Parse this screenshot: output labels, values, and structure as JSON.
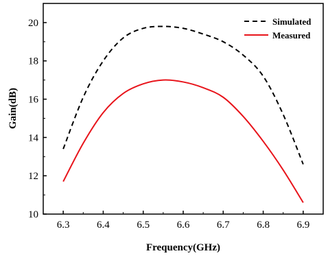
{
  "chart_data": {
    "type": "line",
    "xlabel": "Frequency(GHz)",
    "ylabel": "Gain(dB)",
    "xlim": [
      6.25,
      6.95
    ],
    "ylim": [
      10,
      21
    ],
    "xticks": [
      6.3,
      6.4,
      6.5,
      6.6,
      6.7,
      6.8,
      6.9
    ],
    "yticks": [
      10,
      12,
      14,
      16,
      18,
      20
    ],
    "xtick_labels": [
      "6.3",
      "6.4",
      "6.5",
      "6.6",
      "6.7",
      "6.8",
      "6.9"
    ],
    "ytick_labels": [
      "10",
      "12",
      "14",
      "16",
      "18",
      "20"
    ],
    "grid": false,
    "legend_position": "top-right",
    "series": [
      {
        "name": "Simulated",
        "color": "#000000",
        "style": "dashed",
        "x": [
          6.3,
          6.35,
          6.4,
          6.45,
          6.5,
          6.55,
          6.6,
          6.65,
          6.7,
          6.75,
          6.8,
          6.85,
          6.9
        ],
        "y": [
          13.4,
          16.1,
          18.0,
          19.2,
          19.7,
          19.8,
          19.7,
          19.4,
          19.0,
          18.3,
          17.2,
          15.2,
          12.6
        ]
      },
      {
        "name": "Measured",
        "color": "#e8141b",
        "style": "solid",
        "x": [
          6.3,
          6.35,
          6.4,
          6.45,
          6.5,
          6.55,
          6.6,
          6.65,
          6.7,
          6.75,
          6.8,
          6.85,
          6.9
        ],
        "y": [
          11.7,
          13.7,
          15.3,
          16.3,
          16.8,
          17.0,
          16.9,
          16.6,
          16.1,
          15.1,
          13.8,
          12.3,
          10.6
        ]
      }
    ]
  }
}
